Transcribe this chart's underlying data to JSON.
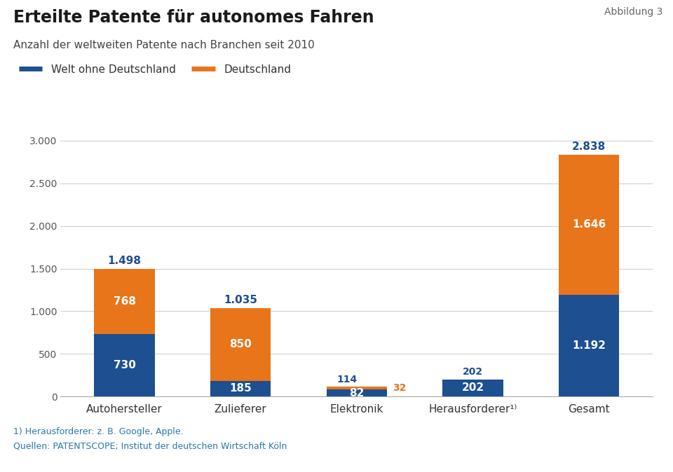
{
  "title": "Erteilte Patente für autonomes Fahren",
  "subtitle": "Anzahl der weltweiten Patente nach Branchen seit 2010",
  "abbildung": "Abbildung 3",
  "categories": [
    "Autohersteller",
    "Zulieferer",
    "Elektronik",
    "Herausforderer¹⁾",
    "Gesamt"
  ],
  "blue_values": [
    730,
    185,
    82,
    202,
    1192
  ],
  "orange_values": [
    768,
    850,
    32,
    0,
    1646
  ],
  "blue_color": "#1d4f91",
  "orange_color": "#e8751a",
  "background_color": "#ffffff",
  "grid_color": "#d0d0d0",
  "text_color_blue": "#1d4f91",
  "text_color_dark": "#222222",
  "text_color_source": "#2878a8",
  "legend_welt": "Welt ohne Deutschland",
  "legend_de": "Deutschland",
  "footnote1": "1) Herausforderer: z. B. Google, Apple.",
  "footnote2": "Quellen: PATENTSCOPE; Institut der deutschen Wirtschaft Köln",
  "ylim": [
    0,
    3100
  ],
  "yticks": [
    0,
    500,
    1000,
    1500,
    2000,
    2500,
    3000
  ],
  "ytick_labels": [
    "0",
    "500",
    "1.000",
    "1.500",
    "2.000",
    "2.500",
    "3.000"
  ],
  "bar_width": 0.52
}
